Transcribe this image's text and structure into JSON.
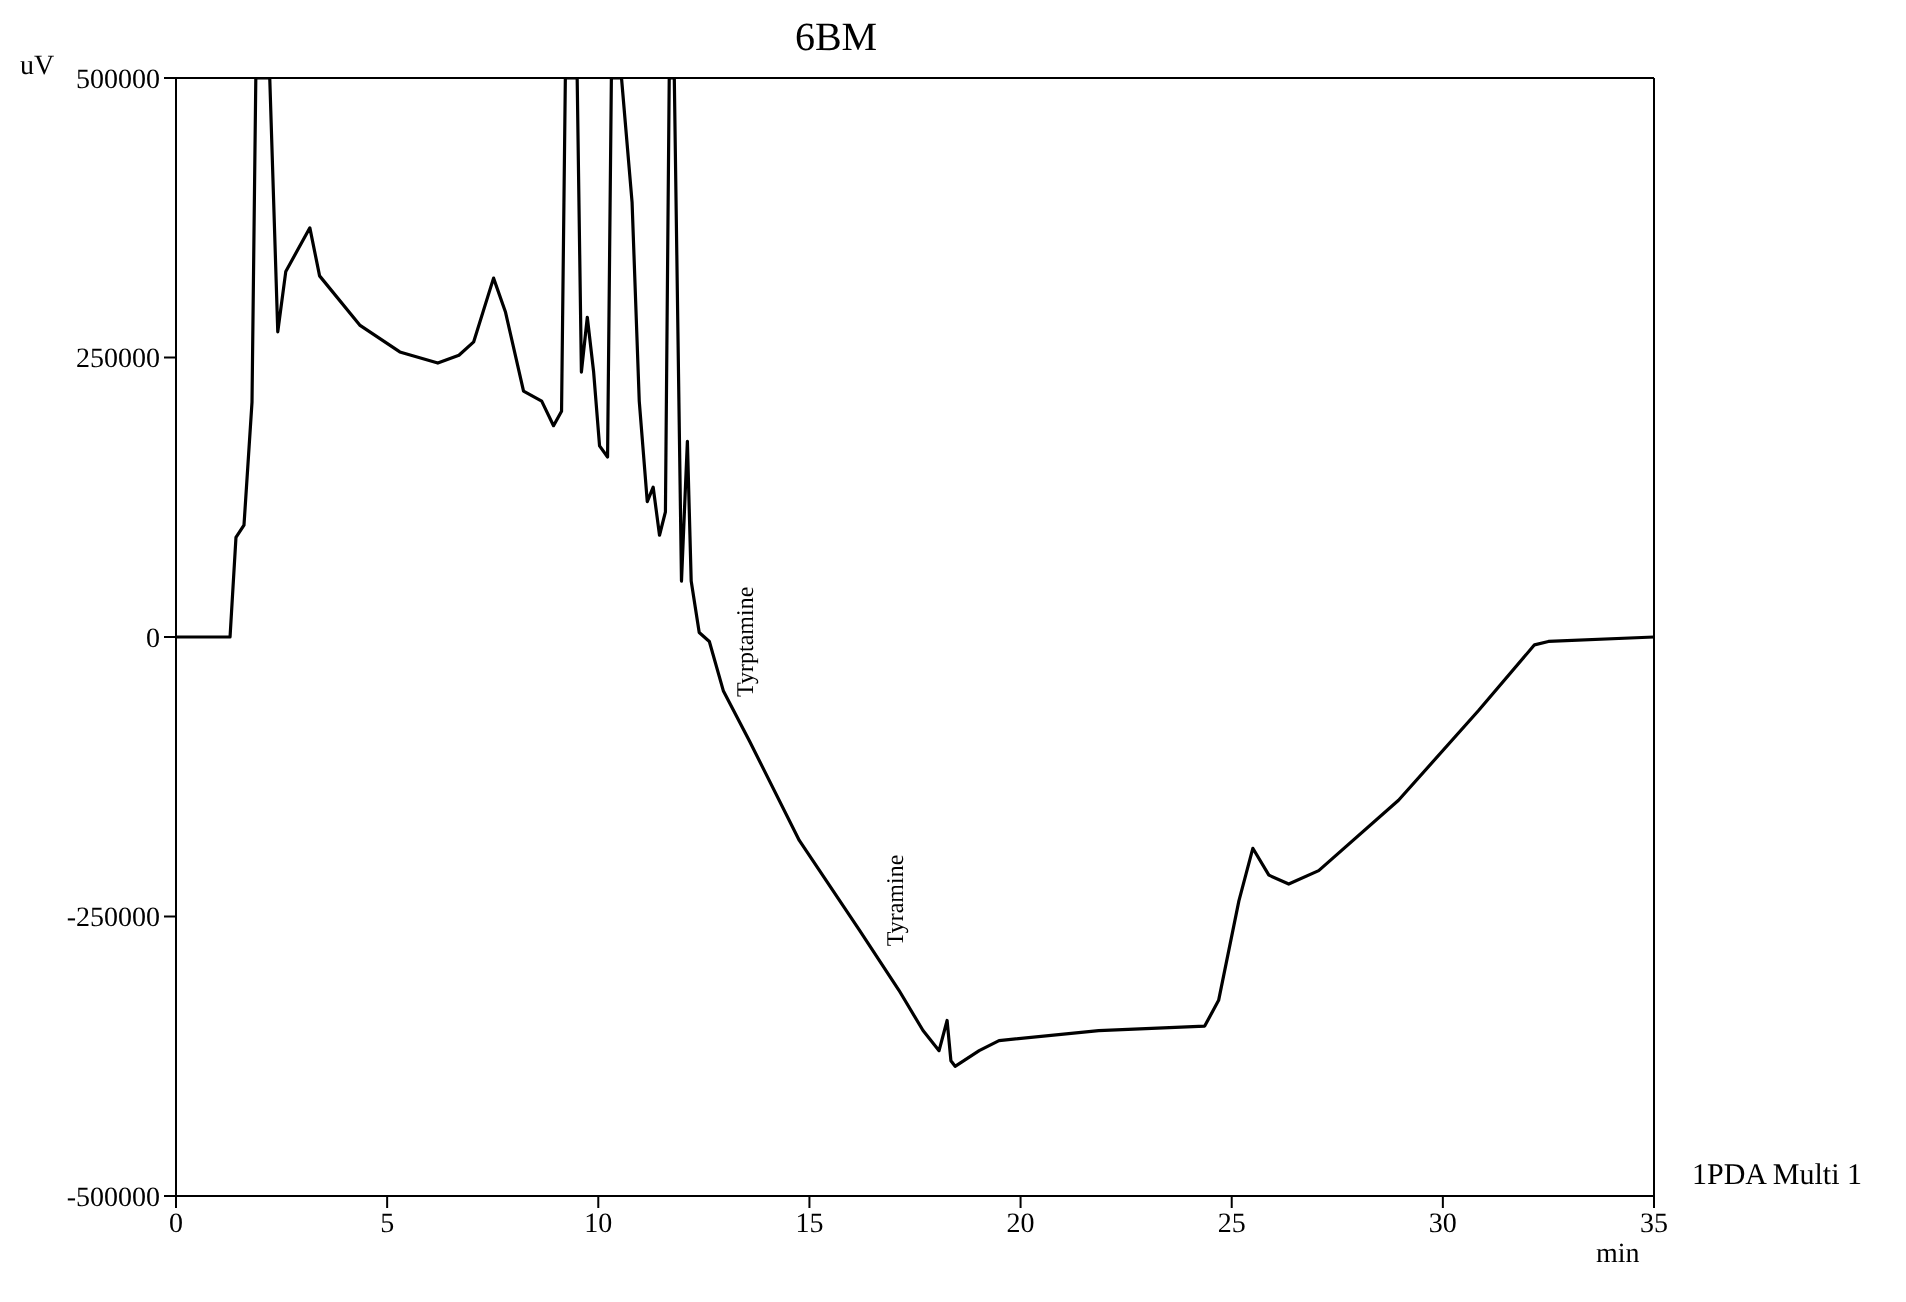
{
  "chart_data": {
    "type": "line",
    "title": "6BM",
    "xlabel": "min",
    "ylabel": "uV",
    "x": [
      0,
      1.28,
      1.42,
      1.61,
      1.8,
      1.89,
      2.22,
      2.41,
      2.6,
      3.17,
      3.4,
      4.35,
      5.3,
      6.2,
      6.7,
      7.05,
      7.52,
      7.8,
      8.23,
      8.66,
      8.94,
      9.13,
      9.22,
      9.5,
      9.6,
      9.74,
      9.89,
      10.03,
      10.22,
      10.31,
      10.55,
      10.8,
      10.97,
      11.16,
      11.3,
      11.45,
      11.59,
      11.68,
      11.8,
      11.97,
      12.11,
      12.2,
      12.39,
      12.63,
      12.96,
      13.58,
      14.76,
      16.18,
      17.12,
      17.69,
      18.07,
      18.26,
      18.35,
      18.45,
      19.02,
      19.49,
      21.85,
      24.36,
      24.69,
      25.17,
      25.5,
      25.88,
      26.35,
      27.06,
      28.95,
      30.84,
      32.17,
      32.5,
      35
    ],
    "series": [
      {
        "color": "#000000",
        "values": [
          0,
          0,
          89000,
          100000,
          210000,
          500000,
          500000,
          273000,
          327000,
          366000,
          323000,
          279000,
          255000,
          245000,
          252000,
          264000,
          321000,
          291000,
          220000,
          211000,
          189000,
          202000,
          500000,
          500000,
          237000,
          286000,
          237000,
          171000,
          161000,
          500000,
          500000,
          389000,
          211000,
          121000,
          134000,
          91000,
          112000,
          500000,
          500000,
          50000,
          175000,
          50000,
          4000,
          -4000,
          -48000,
          -93000,
          -182000,
          -262000,
          -316000,
          -352000,
          -370000,
          -343000,
          -379000,
          -384000,
          -370000,
          -361000,
          -352000,
          -348000,
          -325000,
          -236000,
          -189000,
          -213000,
          -221000,
          -209000,
          -146000,
          -66000,
          -7000,
          -4000,
          0
        ]
      }
    ],
    "xlim": [
      0,
      35
    ],
    "xticks": [
      0,
      5,
      10,
      15,
      20,
      25,
      30,
      35
    ],
    "ylim": [
      -500000,
      500000
    ],
    "yticks": [
      -500000,
      -250000,
      0,
      250000,
      500000
    ],
    "grid": false,
    "marker": "none",
    "line_style": "solid",
    "annotations": [
      {
        "text": "Tyrptamine",
        "x": 13.58,
        "y": -93000
      },
      {
        "text": "Tyramine",
        "x": 17.12,
        "y": -316000
      },
      "1PDA Multi 1"
    ]
  }
}
